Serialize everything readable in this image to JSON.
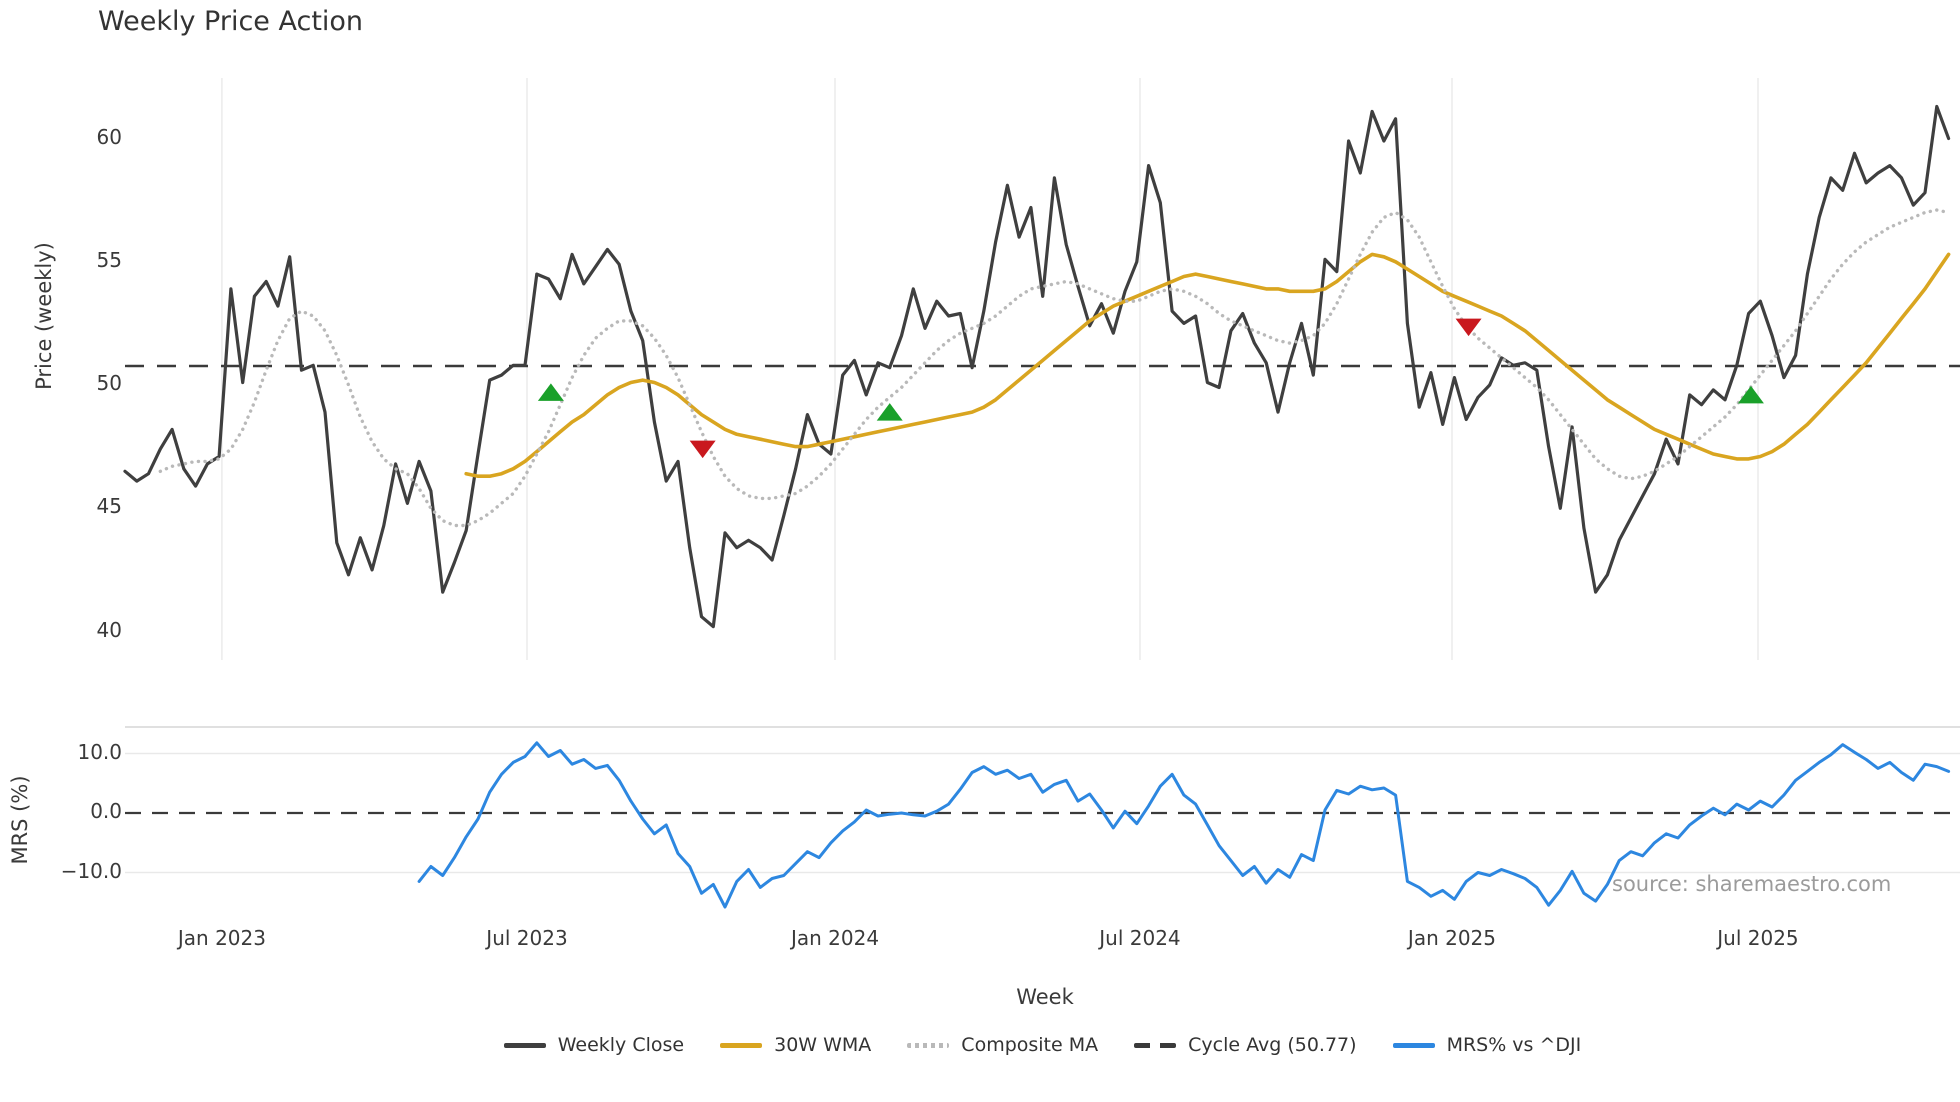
{
  "source_text": "source: sharemaestro.com",
  "legend": {
    "items": [
      {
        "label": "Weekly Close",
        "swatch": "solid",
        "color": "#3f3f3f"
      },
      {
        "label": "30W WMA",
        "swatch": "solid",
        "color": "#d9a520"
      },
      {
        "label": "Composite MA",
        "swatch": "dotted",
        "color": "#b9b9b9"
      },
      {
        "label": "Cycle Avg (50.77)",
        "swatch": "dashed",
        "color": "#3a3a3a"
      },
      {
        "label": "MRS% vs ^DJI",
        "swatch": "solid",
        "color": "#2d87e0"
      }
    ]
  },
  "chart_data": {
    "type": "line",
    "title": "Weekly Price Action",
    "xlabel": "Week",
    "ylabel_top": "Price (weekly)",
    "ylabel_bottom": "MRS (%)",
    "grid": "vertical-light",
    "legend_position": "bottom-center",
    "price_axis_range": [
      38.8,
      62.4
    ],
    "mrs_axis_range": [
      -16.5,
      14.5
    ],
    "cycle_avg": 50.77,
    "x_ticks": [
      {
        "label": "Jan 2023",
        "week": 8.24
      },
      {
        "label": "Jul 2023",
        "week": 34.17
      },
      {
        "label": "Jan 2024",
        "week": 60.35
      },
      {
        "label": "Jul 2024",
        "week": 86.27
      },
      {
        "label": "Jan 2025",
        "week": 112.79
      },
      {
        "label": "Jul 2025",
        "week": 138.8
      }
    ],
    "y_ticks_price": [
      {
        "label": "60",
        "value": 60
      },
      {
        "label": "55",
        "value": 55
      },
      {
        "label": "50",
        "value": 50
      },
      {
        "label": "45",
        "value": 45
      },
      {
        "label": "40",
        "value": 40
      }
    ],
    "y_ticks_mrs": [
      {
        "label": "10.0",
        "value": 10
      },
      {
        "label": "0.0",
        "value": 0
      },
      {
        "label": "−10.0",
        "value": -10
      }
    ],
    "series": [
      {
        "name": "Weekly Close",
        "panel": "price",
        "style": "solid",
        "width": 3.2,
        "color": "#3f3f3f",
        "start_week": 0,
        "values": [
          46.5,
          46.1,
          46.4,
          47.4,
          48.2,
          46.6,
          45.9,
          46.8,
          47.1,
          53.9,
          50.1,
          53.6,
          54.2,
          53.2,
          55.2,
          50.6,
          50.8,
          48.9,
          43.6,
          42.3,
          43.8,
          42.5,
          44.3,
          46.8,
          45.2,
          46.9,
          45.7,
          41.6,
          42.8,
          44.1,
          47.2,
          50.2,
          50.4,
          50.8,
          50.8,
          54.5,
          54.3,
          53.5,
          55.3,
          54.1,
          54.8,
          55.5,
          54.9,
          53.0,
          51.8,
          48.5,
          46.1,
          46.9,
          43.4,
          40.6,
          40.2,
          44.0,
          43.4,
          43.7,
          43.4,
          42.9,
          44.7,
          46.6,
          48.8,
          47.6,
          47.2,
          50.4,
          51.0,
          49.6,
          50.9,
          50.7,
          52.0,
          53.9,
          52.3,
          53.4,
          52.8,
          52.9,
          50.7,
          53.0,
          55.8,
          58.1,
          56.0,
          57.2,
          53.6,
          58.4,
          55.7,
          54.0,
          52.4,
          53.3,
          52.1,
          53.8,
          55.0,
          58.9,
          57.4,
          53.0,
          52.5,
          52.8,
          50.1,
          49.9,
          52.2,
          52.9,
          51.7,
          50.9,
          48.9,
          50.9,
          52.5,
          50.4,
          55.1,
          54.6,
          59.9,
          58.6,
          61.1,
          59.9,
          60.8,
          52.5,
          49.1,
          50.5,
          48.4,
          50.3,
          48.6,
          49.5,
          50.0,
          51.1,
          50.8,
          50.9,
          50.6,
          47.5,
          45.0,
          48.3,
          44.2,
          41.6,
          42.3,
          43.7,
          44.6,
          45.5,
          46.4,
          47.8,
          46.8,
          49.6,
          49.2,
          49.8,
          49.4,
          50.8,
          52.9,
          53.4,
          52.0,
          50.3,
          51.2,
          54.5,
          56.8,
          58.4,
          57.9,
          59.4,
          58.2,
          58.6,
          58.9,
          58.4,
          57.3,
          57.8,
          61.3,
          60.0
        ]
      },
      {
        "name": "30W WMA",
        "panel": "price",
        "style": "solid",
        "width": 3.6,
        "color": "#d9a520",
        "start_week": 29,
        "values": [
          46.4,
          46.3,
          46.3,
          46.4,
          46.6,
          46.9,
          47.3,
          47.7,
          48.1,
          48.5,
          48.8,
          49.2,
          49.6,
          49.9,
          50.1,
          50.2,
          50.1,
          49.9,
          49.6,
          49.2,
          48.8,
          48.5,
          48.2,
          48.0,
          47.9,
          47.8,
          47.7,
          47.6,
          47.5,
          47.5,
          47.6,
          47.7,
          47.8,
          47.9,
          48.0,
          48.1,
          48.2,
          48.3,
          48.4,
          48.5,
          48.6,
          48.7,
          48.8,
          48.9,
          49.1,
          49.4,
          49.8,
          50.2,
          50.6,
          51.0,
          51.4,
          51.8,
          52.2,
          52.6,
          52.9,
          53.2,
          53.4,
          53.6,
          53.8,
          54.0,
          54.2,
          54.4,
          54.5,
          54.4,
          54.3,
          54.2,
          54.1,
          54.0,
          53.9,
          53.9,
          53.8,
          53.8,
          53.8,
          53.9,
          54.2,
          54.6,
          55.0,
          55.3,
          55.2,
          55.0,
          54.7,
          54.4,
          54.1,
          53.8,
          53.6,
          53.4,
          53.2,
          53.0,
          52.8,
          52.5,
          52.2,
          51.8,
          51.4,
          51.0,
          50.6,
          50.2,
          49.8,
          49.4,
          49.1,
          48.8,
          48.5,
          48.2,
          48.0,
          47.8,
          47.6,
          47.4,
          47.2,
          47.1,
          47.0,
          47.0,
          47.1,
          47.3,
          47.6,
          48.0,
          48.4,
          48.9,
          49.4,
          49.9,
          50.4,
          50.9,
          51.5,
          52.1,
          52.7,
          53.3,
          53.9,
          54.6,
          55.3
        ]
      },
      {
        "name": "Composite MA",
        "panel": "price",
        "style": "dotted",
        "width": 3.2,
        "color": "#b9b9b9",
        "start_week": 3,
        "values": [
          46.5,
          46.7,
          46.8,
          46.9,
          46.9,
          47.0,
          47.4,
          48.2,
          49.3,
          50.6,
          51.8,
          52.7,
          53.0,
          52.8,
          52.2,
          51.2,
          50.0,
          48.7,
          47.7,
          47.0,
          46.6,
          46.4,
          45.8,
          45.0,
          44.5,
          44.3,
          44.3,
          44.5,
          44.8,
          45.2,
          45.6,
          46.3,
          47.2,
          48.1,
          49.2,
          50.3,
          51.2,
          51.9,
          52.3,
          52.6,
          52.6,
          52.4,
          51.9,
          51.2,
          50.3,
          49.2,
          48.1,
          47.1,
          46.3,
          45.8,
          45.5,
          45.4,
          45.4,
          45.5,
          45.6,
          45.9,
          46.3,
          46.8,
          47.4,
          48.0,
          48.6,
          49.1,
          49.5,
          49.9,
          50.4,
          50.9,
          51.4,
          51.8,
          52.1,
          52.3,
          52.5,
          52.8,
          53.2,
          53.6,
          53.9,
          54.0,
          54.1,
          54.2,
          54.1,
          53.9,
          53.7,
          53.5,
          53.4,
          53.4,
          53.6,
          53.8,
          53.9,
          53.8,
          53.6,
          53.3,
          52.9,
          52.6,
          52.4,
          52.2,
          52.0,
          51.8,
          51.7,
          51.8,
          52.0,
          52.5,
          53.3,
          54.3,
          55.3,
          56.2,
          56.8,
          57.0,
          56.7,
          56.0,
          55.0,
          54.0,
          53.1,
          52.4,
          51.9,
          51.5,
          51.1,
          50.7,
          50.3,
          49.9,
          49.4,
          48.8,
          48.2,
          47.6,
          47.0,
          46.6,
          46.3,
          46.2,
          46.3,
          46.5,
          46.8,
          47.1,
          47.5,
          47.9,
          48.3,
          48.7,
          49.2,
          49.8,
          50.4,
          51.0,
          51.6,
          52.2,
          52.9,
          53.6,
          54.3,
          54.9,
          55.4,
          55.8,
          56.1,
          56.4,
          56.6,
          56.8,
          57.0,
          57.1,
          57.0
        ]
      },
      {
        "name": "MRS% vs ^DJI",
        "panel": "mrs",
        "style": "solid",
        "width": 3.0,
        "color": "#2d87e0",
        "start_week": 25,
        "values": [
          -11.5,
          -9.0,
          -10.5,
          -7.5,
          -4.0,
          -1.0,
          3.5,
          6.5,
          8.5,
          9.5,
          11.8,
          9.5,
          10.5,
          8.2,
          9.0,
          7.5,
          8.0,
          5.5,
          2.0,
          -1.0,
          -3.5,
          -2.0,
          -6.8,
          -9.0,
          -13.5,
          -12.0,
          -15.8,
          -11.5,
          -9.5,
          -12.5,
          -11.0,
          -10.5,
          -8.5,
          -6.5,
          -7.5,
          -5.0,
          -3.0,
          -1.5,
          0.5,
          -0.5,
          -0.2,
          0.0,
          -0.3,
          -0.5,
          0.3,
          1.5,
          4.0,
          6.8,
          7.8,
          6.5,
          7.2,
          5.8,
          6.5,
          3.5,
          4.8,
          5.5,
          2.0,
          3.2,
          0.5,
          -2.5,
          0.3,
          -1.8,
          1.2,
          4.5,
          6.5,
          3.0,
          1.5,
          -2.0,
          -5.5,
          -8.0,
          -10.5,
          -9.0,
          -11.8,
          -9.5,
          -10.8,
          -7.0,
          -8.0,
          0.5,
          3.8,
          3.2,
          4.5,
          3.9,
          4.2,
          3.0,
          -11.5,
          -12.5,
          -14.0,
          -13.0,
          -14.5,
          -11.5,
          -10.0,
          -10.5,
          -9.5,
          -10.2,
          -11.0,
          -12.5,
          -15.5,
          -13.0,
          -9.8,
          -13.5,
          -14.8,
          -12.0,
          -8.0,
          -6.5,
          -7.2,
          -5.0,
          -3.5,
          -4.2,
          -2.0,
          -0.5,
          0.8,
          -0.3,
          1.5,
          0.5,
          2.0,
          1.0,
          3.0,
          5.5,
          7.0,
          8.5,
          9.8,
          11.5,
          10.2,
          9.0,
          7.5,
          8.5,
          6.8,
          5.5,
          8.2,
          7.8,
          7.0
        ]
      }
    ],
    "markers": {
      "buy": {
        "color": "#1aa02a",
        "shape": "triangle-up",
        "points": [
          {
            "week": 36.2,
            "price": 49.7
          },
          {
            "week": 65.0,
            "price": 48.9
          },
          {
            "week": 138.2,
            "price": 49.6
          }
        ]
      },
      "sell": {
        "color": "#c9181e",
        "shape": "triangle-down",
        "points": [
          {
            "week": 49.1,
            "price": 47.4
          },
          {
            "week": 114.2,
            "price": 52.35
          }
        ]
      }
    }
  }
}
